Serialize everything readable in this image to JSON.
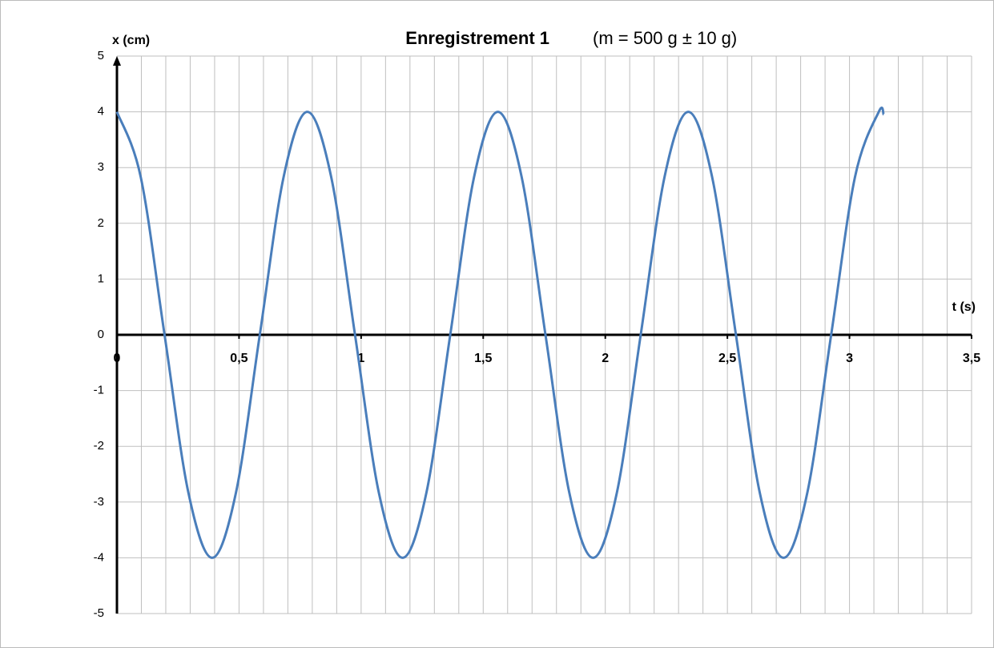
{
  "chart_data": {
    "type": "line",
    "title": "Enregistrement 1",
    "subtitle": "(m = 500 g ± 10 g)",
    "y_label": "x (cm)",
    "x_label": "t (s)",
    "x": [
      0,
      0.0975,
      0.195,
      0.2925,
      0.39,
      0.4875,
      0.585,
      0.6825,
      0.78,
      0.8775,
      0.975,
      1.0725,
      1.17,
      1.2675,
      1.365,
      1.4625,
      1.56,
      1.6575,
      1.755,
      1.8525,
      1.95,
      2.0475,
      2.145,
      2.2425,
      2.34,
      2.4375,
      2.535,
      2.6325,
      2.73,
      2.8275,
      2.925,
      3.0225,
      3.12,
      3.14
    ],
    "series": [
      {
        "color": "#4a7ebb",
        "values": [
          4,
          2.83,
          0,
          -2.83,
          -4,
          -2.83,
          0,
          2.83,
          4,
          2.83,
          0,
          -2.83,
          -4,
          -2.83,
          0,
          2.83,
          4,
          2.83,
          0,
          -2.83,
          -4,
          -2.83,
          0,
          2.83,
          4,
          2.83,
          0,
          -2.83,
          -4,
          -2.83,
          0,
          2.83,
          4,
          3.95
        ]
      }
    ],
    "xlim": [
      0,
      3.5
    ],
    "ylim": [
      -5,
      5
    ],
    "xticks": [
      0,
      {
        "value": 0.5,
        "label": "0,5"
      },
      1,
      {
        "value": 1.5,
        "label": "1,5"
      },
      2,
      {
        "value": 2.5,
        "label": "2,5"
      },
      3,
      {
        "value": 3.5,
        "label": "3,5"
      }
    ],
    "yticks": [
      -5,
      -4,
      -3,
      -2,
      -1,
      0,
      1,
      2,
      3,
      4,
      5
    ],
    "xgrid": [
      0,
      0.1,
      0.2,
      0.3,
      0.4,
      0.5,
      0.6,
      0.7,
      0.8,
      0.9,
      1,
      1.1,
      1.2,
      1.3,
      1.4,
      1.5,
      1.6,
      1.7,
      1.8,
      1.9,
      2,
      2.1,
      2.2,
      2.3,
      2.4,
      2.5,
      2.6,
      2.7,
      2.8,
      2.9,
      3,
      3.1,
      3.2,
      3.3,
      3.4,
      3.5
    ],
    "grid": true
  }
}
